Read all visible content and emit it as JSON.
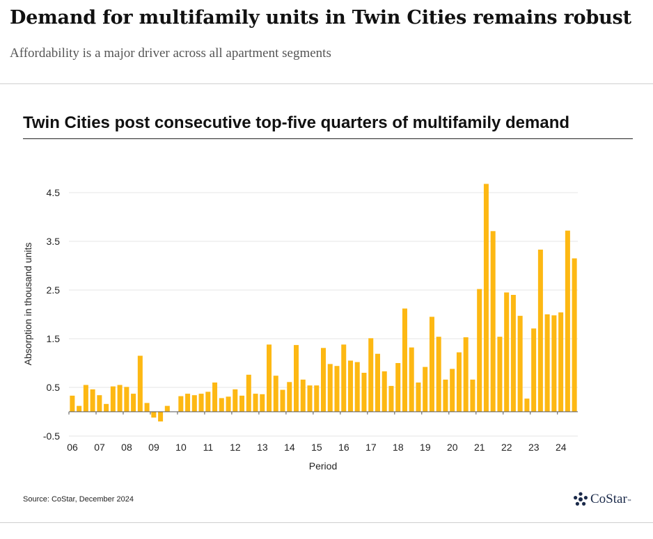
{
  "article": {
    "headline": "Demand for multifamily units in Twin Cities remains robust",
    "dek": "Affordability is a major driver across all apartment segments"
  },
  "footer": {
    "source": "Source: CoStar, December 2024",
    "logo_text": "CoStar",
    "logo_tm": "™",
    "logo_icon": "costar-star-icon"
  },
  "colors": {
    "bar": "#FDB813",
    "grid": "#e6e6e6",
    "axis": "#555555",
    "text": "#222222"
  },
  "chart_data": {
    "type": "bar",
    "title": "Twin Cities post consecutive top-five quarters of multifamily demand",
    "xlabel": "Period",
    "ylabel": "Absorption in thousand units",
    "ylim": [
      -0.5,
      4.5
    ],
    "yticks": [
      -0.5,
      0.5,
      1.5,
      2.5,
      3.5,
      4.5
    ],
    "ytick_labels": [
      "-0.5",
      "0.5",
      "1.5",
      "2.5",
      "3.5",
      "4.5"
    ],
    "grid": true,
    "legend": "none",
    "x_tick_labels": [
      "06",
      "07",
      "08",
      "09",
      "10",
      "11",
      "12",
      "13",
      "14",
      "15",
      "16",
      "17",
      "18",
      "19",
      "20",
      "21",
      "22",
      "23",
      "24"
    ],
    "values": [
      0.33,
      0.12,
      0.55,
      0.46,
      0.34,
      0.16,
      0.52,
      0.55,
      0.51,
      0.37,
      1.15,
      0.18,
      -0.12,
      -0.2,
      0.12,
      null,
      0.32,
      0.37,
      0.34,
      0.37,
      0.41,
      0.6,
      0.28,
      0.31,
      0.46,
      0.33,
      0.76,
      0.37,
      0.36,
      1.38,
      0.74,
      0.45,
      0.61,
      1.37,
      0.66,
      0.54,
      0.54,
      1.31,
      0.98,
      0.94,
      1.38,
      1.05,
      1.02,
      0.8,
      1.51,
      1.19,
      0.83,
      0.53,
      1.0,
      2.12,
      1.32,
      0.6,
      0.92,
      1.95,
      1.54,
      0.66,
      0.88,
      1.22,
      1.53,
      0.66,
      2.52,
      4.68,
      3.71,
      1.54,
      2.45,
      2.4,
      1.97,
      0.27,
      1.71,
      3.33,
      2.0,
      1.98,
      2.04,
      3.72,
      3.15
    ]
  }
}
